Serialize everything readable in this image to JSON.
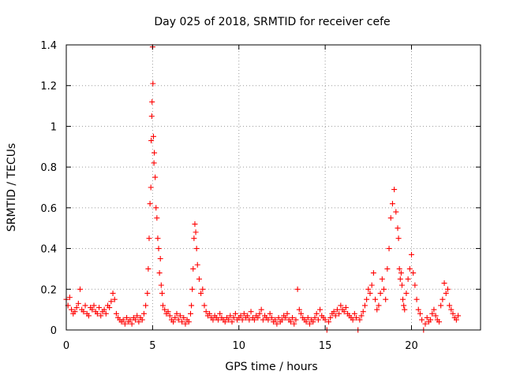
{
  "chart_data": {
    "type": "scatter",
    "title": "Day 025 of 2018, SRMTID for receiver cefe",
    "xlabel": "GPS time / hours",
    "ylabel": "SRMTID / TECUs",
    "xlim": [
      0,
      24
    ],
    "ylim": [
      0,
      1.4
    ],
    "xticks": [
      0,
      5,
      10,
      15,
      20
    ],
    "xtick_labels": [
      "0",
      "5",
      "10",
      "15",
      "20"
    ],
    "yticks": [
      0,
      0.2,
      0.4,
      0.6,
      0.8,
      1.0,
      1.2,
      1.4
    ],
    "ytick_labels": [
      "0",
      "0.2",
      "0.4",
      "0.6",
      "0.8",
      "1",
      "1.2",
      "1.4"
    ],
    "grid": true,
    "marker": "+",
    "color": "#ff0000",
    "series": [
      {
        "name": "SRMTID",
        "x": [
          0.0,
          0.1,
          0.2,
          0.3,
          0.4,
          0.5,
          0.6,
          0.7,
          0.8,
          0.9,
          1.0,
          1.1,
          1.2,
          1.3,
          1.4,
          1.5,
          1.6,
          1.7,
          1.8,
          1.9,
          2.0,
          2.1,
          2.2,
          2.3,
          2.4,
          2.5,
          2.6,
          2.7,
          2.8,
          2.9,
          3.0,
          3.1,
          3.2,
          3.3,
          3.4,
          3.5,
          3.6,
          3.7,
          3.8,
          3.9,
          4.0,
          4.1,
          4.2,
          4.3,
          4.4,
          4.5,
          4.6,
          4.7,
          4.75,
          4.8,
          4.85,
          4.9,
          4.92,
          4.95,
          4.97,
          5.0,
          5.02,
          5.05,
          5.08,
          5.1,
          5.15,
          5.2,
          5.25,
          5.3,
          5.35,
          5.4,
          5.45,
          5.5,
          5.55,
          5.6,
          5.7,
          5.8,
          5.9,
          6.0,
          6.1,
          6.2,
          6.3,
          6.4,
          6.5,
          6.6,
          6.7,
          6.8,
          6.9,
          7.0,
          7.1,
          7.2,
          7.25,
          7.3,
          7.35,
          7.4,
          7.45,
          7.5,
          7.55,
          7.6,
          7.7,
          7.8,
          7.9,
          8.0,
          8.1,
          8.2,
          8.3,
          8.4,
          8.5,
          8.6,
          8.7,
          8.8,
          8.9,
          9.0,
          9.1,
          9.2,
          9.3,
          9.4,
          9.5,
          9.6,
          9.7,
          9.8,
          9.9,
          10.0,
          10.1,
          10.2,
          10.3,
          10.4,
          10.5,
          10.6,
          10.7,
          10.8,
          10.9,
          11.0,
          11.1,
          11.2,
          11.3,
          11.4,
          11.5,
          11.6,
          11.7,
          11.8,
          11.9,
          12.0,
          12.1,
          12.2,
          12.3,
          12.4,
          12.5,
          12.6,
          12.7,
          12.8,
          12.9,
          13.0,
          13.1,
          13.2,
          13.3,
          13.4,
          13.5,
          13.6,
          13.7,
          13.8,
          13.9,
          14.0,
          14.1,
          14.2,
          14.3,
          14.4,
          14.5,
          14.6,
          14.7,
          14.8,
          14.9,
          15.0,
          15.1,
          15.2,
          15.3,
          15.4,
          15.5,
          15.6,
          15.7,
          15.8,
          15.9,
          16.0,
          16.1,
          16.2,
          16.3,
          16.4,
          16.5,
          16.6,
          16.7,
          16.8,
          16.9,
          17.0,
          17.1,
          17.2,
          17.3,
          17.4,
          17.5,
          17.6,
          17.7,
          17.8,
          17.9,
          18.0,
          18.1,
          18.2,
          18.3,
          18.4,
          18.5,
          18.6,
          18.7,
          18.8,
          18.9,
          19.0,
          19.1,
          19.2,
          19.25,
          19.3,
          19.35,
          19.4,
          19.45,
          19.5,
          19.55,
          19.6,
          19.7,
          19.8,
          19.9,
          20.0,
          20.1,
          20.2,
          20.3,
          20.4,
          20.5,
          20.6,
          20.7,
          20.8,
          20.9,
          21.0,
          21.1,
          21.2,
          21.3,
          21.4,
          21.5,
          21.6,
          21.7,
          21.8,
          21.9,
          22.0,
          22.1,
          22.2,
          22.3,
          22.4,
          22.5,
          22.6,
          22.7
        ],
        "y": [
          0.15,
          0.12,
          0.16,
          0.1,
          0.08,
          0.09,
          0.11,
          0.13,
          0.2,
          0.1,
          0.09,
          0.12,
          0.08,
          0.07,
          0.11,
          0.1,
          0.12,
          0.09,
          0.08,
          0.11,
          0.07,
          0.09,
          0.1,
          0.08,
          0.12,
          0.11,
          0.14,
          0.18,
          0.15,
          0.08,
          0.06,
          0.05,
          0.04,
          0.05,
          0.03,
          0.06,
          0.04,
          0.05,
          0.03,
          0.06,
          0.05,
          0.07,
          0.04,
          0.06,
          0.05,
          0.08,
          0.12,
          0.18,
          0.3,
          0.45,
          0.62,
          0.7,
          0.93,
          1.05,
          1.12,
          1.39,
          1.21,
          0.95,
          0.82,
          0.87,
          0.75,
          0.6,
          0.55,
          0.45,
          0.4,
          0.28,
          0.35,
          0.22,
          0.18,
          0.12,
          0.1,
          0.08,
          0.09,
          0.07,
          0.05,
          0.04,
          0.06,
          0.08,
          0.05,
          0.07,
          0.04,
          0.06,
          0.03,
          0.05,
          0.04,
          0.08,
          0.12,
          0.2,
          0.3,
          0.45,
          0.52,
          0.48,
          0.4,
          0.32,
          0.25,
          0.18,
          0.2,
          0.12,
          0.09,
          0.07,
          0.08,
          0.06,
          0.05,
          0.07,
          0.06,
          0.05,
          0.08,
          0.06,
          0.05,
          0.04,
          0.06,
          0.05,
          0.07,
          0.04,
          0.06,
          0.08,
          0.05,
          0.06,
          0.07,
          0.05,
          0.08,
          0.06,
          0.07,
          0.05,
          0.09,
          0.06,
          0.05,
          0.07,
          0.06,
          0.08,
          0.1,
          0.05,
          0.07,
          0.06,
          0.05,
          0.08,
          0.06,
          0.04,
          0.05,
          0.03,
          0.06,
          0.04,
          0.05,
          0.07,
          0.06,
          0.08,
          0.05,
          0.04,
          0.06,
          0.03,
          0.05,
          0.2,
          0.1,
          0.08,
          0.06,
          0.05,
          0.04,
          0.06,
          0.03,
          0.05,
          0.04,
          0.06,
          0.08,
          0.05,
          0.1,
          0.07,
          0.06,
          0.05,
          0.0,
          0.04,
          0.06,
          0.08,
          0.09,
          0.07,
          0.1,
          0.08,
          0.12,
          0.1,
          0.09,
          0.11,
          0.08,
          0.07,
          0.06,
          0.05,
          0.08,
          0.06,
          0.0,
          0.05,
          0.07,
          0.09,
          0.12,
          0.15,
          0.2,
          0.18,
          0.22,
          0.28,
          0.15,
          0.1,
          0.12,
          0.18,
          0.25,
          0.2,
          0.15,
          0.3,
          0.4,
          0.55,
          0.62,
          0.69,
          0.58,
          0.5,
          0.45,
          0.3,
          0.25,
          0.28,
          0.22,
          0.15,
          0.12,
          0.1,
          0.18,
          0.25,
          0.3,
          0.37,
          0.28,
          0.22,
          0.15,
          0.1,
          0.08,
          0.05,
          0.0,
          0.03,
          0.06,
          0.04,
          0.05,
          0.08,
          0.1,
          0.07,
          0.05,
          0.04,
          0.12,
          0.15,
          0.23,
          0.18,
          0.2,
          0.12,
          0.1,
          0.08,
          0.06,
          0.05,
          0.07
        ]
      }
    ]
  }
}
